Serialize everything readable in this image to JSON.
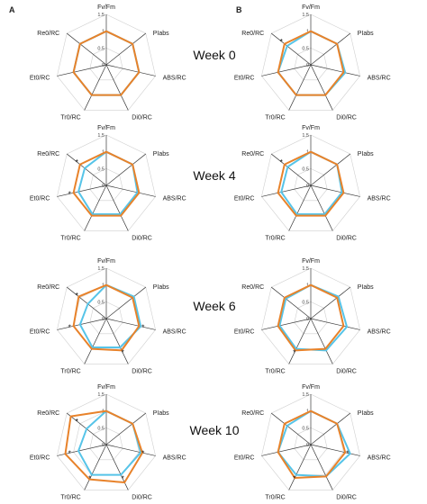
{
  "panel_labels": [
    "A",
    "B"
  ],
  "week_labels": [
    "Week 0",
    "Week 4",
    "Week 6",
    "Week 10"
  ],
  "chart_data": {
    "type": "radar",
    "axes": [
      "Fv/Fm",
      "PIabs",
      "ABS/RC",
      "Di0/RC",
      "Tr0/RC",
      "Et0/RC",
      "Re0/RC"
    ],
    "axis_tick_labels": [
      "0",
      "0.5",
      "1",
      "1.5"
    ],
    "rlim": [
      0,
      1.5
    ],
    "series_colors": [
      "#56c4e8",
      "#e8822a"
    ],
    "significance_marker": "*",
    "panels": [
      {
        "panel": "A",
        "week": "Week 0",
        "series": [
          {
            "values": [
              1.0,
              1.0,
              1.0,
              1.0,
              1.0,
              1.0,
              1.0
            ]
          },
          {
            "values": [
              1.0,
              1.0,
              1.0,
              1.0,
              1.0,
              1.0,
              1.0
            ]
          }
        ],
        "significant_axes": []
      },
      {
        "panel": "B",
        "week": "Week 0",
        "series": [
          {
            "values": [
              1.0,
              1.0,
              1.05,
              1.0,
              1.0,
              1.0,
              0.9
            ]
          },
          {
            "values": [
              1.0,
              1.0,
              1.0,
              1.0,
              1.0,
              1.0,
              1.0
            ]
          }
        ],
        "significant_axes": [
          "Re0/RC"
        ]
      },
      {
        "panel": "A",
        "week": "Week 4",
        "series": [
          {
            "values": [
              1.0,
              1.0,
              0.95,
              0.95,
              0.95,
              0.85,
              0.82
            ]
          },
          {
            "values": [
              1.0,
              1.0,
              1.0,
              1.0,
              1.0,
              1.0,
              1.0
            ]
          }
        ],
        "significant_axes": [
          "Re0/RC",
          "Et0/RC"
        ]
      },
      {
        "panel": "B",
        "week": "Week 4",
        "series": [
          {
            "values": [
              1.0,
              1.0,
              0.95,
              0.95,
              0.95,
              0.9,
              0.88
            ]
          },
          {
            "values": [
              1.0,
              1.0,
              1.0,
              1.0,
              1.0,
              1.0,
              1.0
            ]
          }
        ],
        "significant_axes": [
          "Re0/RC"
        ]
      },
      {
        "panel": "A",
        "week": "Week 6",
        "series": [
          {
            "values": [
              1.0,
              1.05,
              1.05,
              0.95,
              0.95,
              0.8,
              0.7
            ]
          },
          {
            "values": [
              1.0,
              1.0,
              1.0,
              1.05,
              1.0,
              1.0,
              1.05
            ]
          }
        ],
        "significant_axes": [
          "Re0/RC",
          "Et0/RC",
          "ABS/RC",
          "Di0/RC"
        ]
      },
      {
        "panel": "B",
        "week": "Week 6",
        "series": [
          {
            "values": [
              1.0,
              1.05,
              1.1,
              1.05,
              1.0,
              0.95,
              0.95
            ]
          },
          {
            "values": [
              1.0,
              1.0,
              1.0,
              1.0,
              1.05,
              1.0,
              1.0
            ]
          }
        ],
        "significant_axes": [
          "Tr0/RC"
        ]
      },
      {
        "panel": "A",
        "week": "Week 10",
        "series": [
          {
            "values": [
              1.0,
              1.0,
              1.05,
              1.0,
              1.0,
              0.85,
              0.75
            ]
          },
          {
            "values": [
              1.0,
              1.0,
              1.1,
              1.25,
              1.15,
              1.25,
              1.35
            ]
          }
        ],
        "significant_axes": [
          "Re0/RC",
          "Et0/RC",
          "ABS/RC",
          "Di0/RC",
          "Tr0/RC"
        ]
      },
      {
        "panel": "B",
        "week": "Week 10",
        "series": [
          {
            "values": [
              1.0,
              1.0,
              1.2,
              1.05,
              1.0,
              1.0,
              0.9
            ]
          },
          {
            "values": [
              1.0,
              1.0,
              1.05,
              1.05,
              1.1,
              1.0,
              1.0
            ]
          }
        ],
        "significant_axes": [
          "ABS/RC",
          "Tr0/RC"
        ]
      }
    ]
  }
}
